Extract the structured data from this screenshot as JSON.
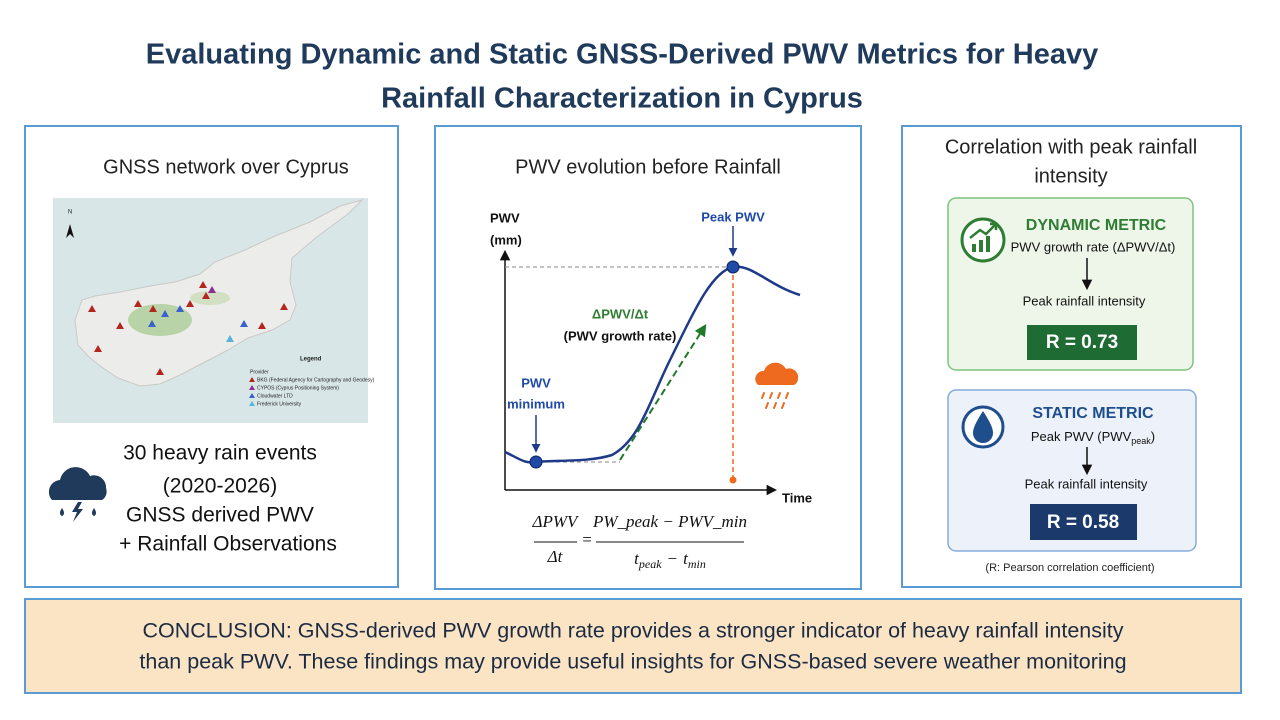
{
  "title": {
    "lines": [
      "Evaluating Dynamic and Static GNSS-Derived PWV Metrics for Heavy",
      "Rainfall Characterization in Cyprus"
    ]
  },
  "left": {
    "title": "GNSS network over Cyprus",
    "map": {
      "north": "N",
      "legend_title": "Legend",
      "provider_label": "Provider",
      "providers": [
        "BKG (Federal Agency for Cartography and Geodesy)",
        "CYPOS (Cyprus Positioning System)",
        "Cloudwater LTD",
        "Frederick University"
      ]
    },
    "events": [
      "30 heavy rain events",
      "(2020-2026)",
      "GNSS derived PWV",
      "+ Rainfall Observations"
    ]
  },
  "middle": {
    "title": "PWV evolution before Rainfall",
    "chart": {
      "y_label": [
        "PWV",
        "(mm)"
      ],
      "x_label": "Time",
      "peak_label": "Peak PWV",
      "growth_label": [
        "ΔPWV/Δt",
        "(PWV growth rate)"
      ],
      "minimum_label": [
        "PWV",
        "minimum"
      ]
    },
    "formula": {
      "lhs_num": "ΔPWV",
      "lhs_den": "Δt",
      "equals": "=",
      "rhs_num": "PW_peak − PWV_min",
      "den_t1": "t",
      "den_sub1": "peak",
      "den_minus": "−",
      "den_t2": "t",
      "den_sub2": "min"
    }
  },
  "right": {
    "title_lines": [
      "Correlation with peak rainfall",
      "intensity"
    ],
    "dynamic": {
      "heading": "DYNAMIC METRIC",
      "metric": "PWV growth rate (ΔPWV/Δt)",
      "target": "Peak rainfall intensity",
      "r": "R = 0.73"
    },
    "static": {
      "heading": "STATIC METRIC",
      "metric_base": "Peak PWV (PWV",
      "metric_sub": "peak",
      "metric_close": ")",
      "target": "Peak rainfall intensity",
      "r": "R = 0.58"
    },
    "note": "(R: Pearson correlation coefficient)"
  },
  "conclusion": {
    "lines": [
      "CONCLUSION: GNSS-derived PWV growth rate provides a stronger indicator of heavy rainfall intensity",
      "than peak PWV. These findings may provide useful insights for GNSS-based severe weather monitoring"
    ]
  }
}
